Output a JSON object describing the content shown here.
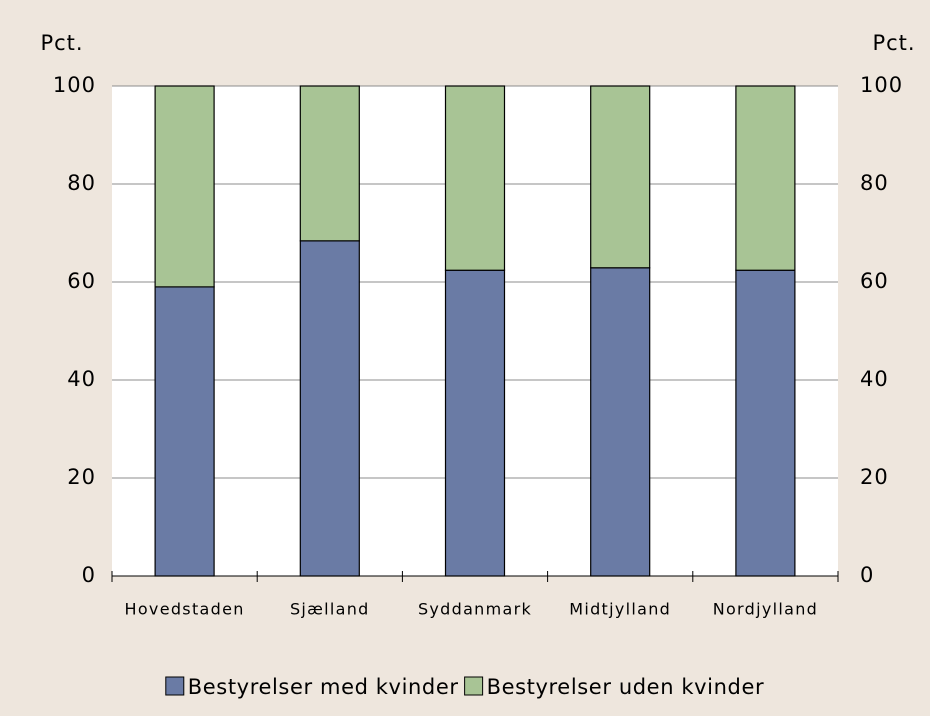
{
  "chart_data": {
    "type": "stacked_bar",
    "y_label": "Pct.",
    "y2_label": "Pct.",
    "categories": [
      "Hovedstaden",
      "Sjælland",
      "Syddanmark",
      "Midtjylland",
      "Nordjylland"
    ],
    "series": [
      {
        "name": "Bestyrelser med kvinder",
        "color": "#6a7ba5",
        "values": [
          59,
          68.4,
          62.4,
          62.9,
          62.4
        ]
      },
      {
        "name": "Bestyrelser uden kvinder",
        "color": "#a8c495",
        "values": [
          41,
          31.6,
          37.6,
          37.1,
          37.6
        ]
      }
    ],
    "ylim": [
      0,
      100
    ],
    "yticks": [
      0,
      20,
      40,
      60,
      80,
      100
    ],
    "y2lim": [
      0,
      100
    ],
    "y2ticks": [
      0,
      20,
      40,
      60,
      80,
      100
    ],
    "grid": true,
    "legend": "bottom"
  }
}
